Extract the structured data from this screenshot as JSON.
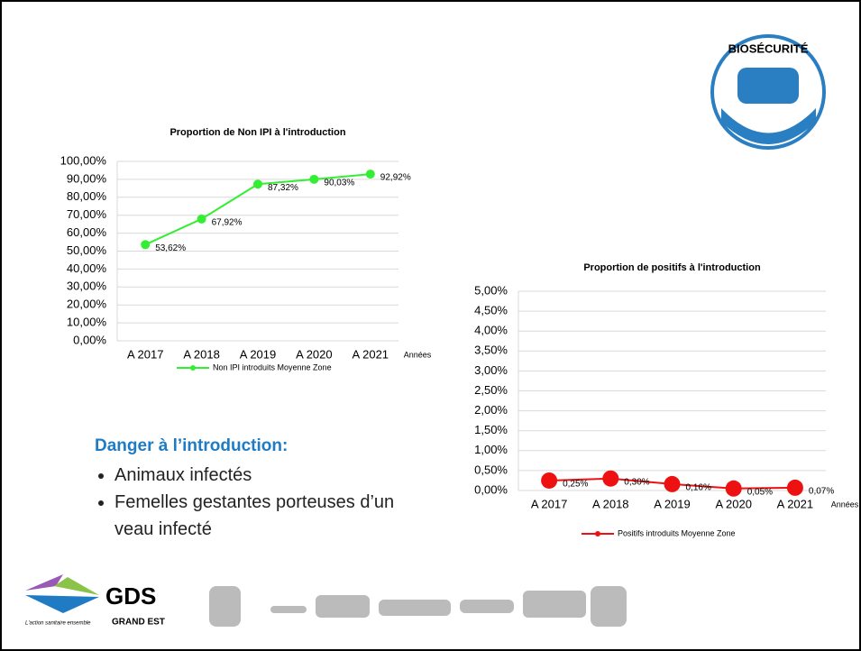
{
  "chart_data": [
    {
      "type": "line",
      "title": "Proportion de Non IPI à l'introduction",
      "x_label": "Années",
      "categories": [
        "A 2017",
        "A 2018",
        "A 2019",
        "A 2020",
        "A 2021"
      ],
      "series": [
        {
          "name": "Non IPI introduits Moyenne Zone",
          "color": "#33ee33",
          "values": [
            53.62,
            67.92,
            87.32,
            90.03,
            92.92
          ],
          "value_labels": [
            "53,62%",
            "67,92%",
            "87,32%",
            "90,03%",
            "92,92%"
          ]
        }
      ],
      "ylim": [
        0,
        100
      ],
      "yticks": [
        {
          "value": 0,
          "label": "0,00%"
        },
        {
          "value": 10,
          "label": "10,00%"
        },
        {
          "value": 20,
          "label": "20,00%"
        },
        {
          "value": 30,
          "label": "30,00%"
        },
        {
          "value": 40,
          "label": "40,00%"
        },
        {
          "value": 50,
          "label": "50,00%"
        },
        {
          "value": 60,
          "label": "60,00%"
        },
        {
          "value": 70,
          "label": "70,00%"
        },
        {
          "value": 80,
          "label": "80,00%"
        },
        {
          "value": 90,
          "label": "90,00%"
        },
        {
          "value": 100,
          "label": "100,00%"
        }
      ],
      "grid": true,
      "legend": "bottom"
    },
    {
      "type": "line",
      "title": "Proportion de positifs à l'introduction",
      "x_label": "Années",
      "categories": [
        "A 2017",
        "A 2018",
        "A 2019",
        "A 2020",
        "A 2021"
      ],
      "series": [
        {
          "name": "Positifs introduits Moyenne Zone",
          "color": "#ee1111",
          "values": [
            0.25,
            0.3,
            0.16,
            0.05,
            0.07
          ],
          "value_labels": [
            "0,25%",
            "0,30%",
            "0,16%",
            "0,05%",
            "0,07%"
          ]
        }
      ],
      "ylim": [
        0,
        5
      ],
      "yticks": [
        {
          "value": 0,
          "label": "0,00%"
        },
        {
          "value": 0.5,
          "label": "0,50%"
        },
        {
          "value": 1,
          "label": "1,00%"
        },
        {
          "value": 1.5,
          "label": "1,50%"
        },
        {
          "value": 2,
          "label": "2,00%"
        },
        {
          "value": 2.5,
          "label": "2,50%"
        },
        {
          "value": 3,
          "label": "3,00%"
        },
        {
          "value": 3.5,
          "label": "3,50%"
        },
        {
          "value": 4,
          "label": "4,00%"
        },
        {
          "value": 4.5,
          "label": "4,50%"
        },
        {
          "value": 5,
          "label": "5,00%"
        }
      ],
      "grid": true,
      "legend": "bottom"
    }
  ],
  "text": {
    "heading": "Danger à l’introduction:",
    "bullets": [
      "Animaux infectés",
      "Femelles gestantes porteuses d’un veau infecté"
    ]
  },
  "logos": {
    "badge": "BIOSÉCURITÉ",
    "brand": "GDS",
    "region": "GRAND EST",
    "tagline": "L'action sanitaire ensemble"
  }
}
